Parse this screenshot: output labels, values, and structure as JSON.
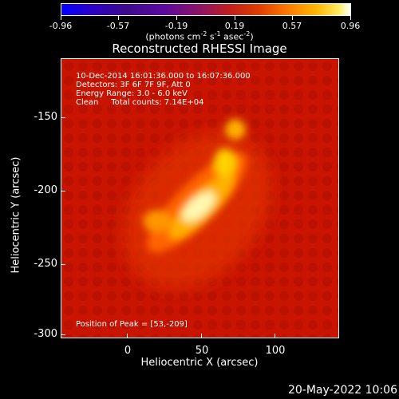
{
  "colorbar": {
    "tick_labels": [
      "-0.96",
      "-0.57",
      "-0.19",
      "0.19",
      "0.57",
      "0.96"
    ],
    "units_main": "(photons cm",
    "units_exp1": "-2",
    "units_mid": " s",
    "units_exp2": "-1",
    "units_mid2": " asec",
    "units_exp3": "-2",
    "units_end": ")"
  },
  "title": "Reconstructed RHESSI Image",
  "info": {
    "line1": "10-Dec-2014 16:01:36.000 to 16:07:36.000",
    "line2": "Detectors: 3F 6F 7F 9F, Att 0",
    "line3": "Energy Range: 3.0 - 6.0 keV",
    "line4": "Clean     Total counts: 7.14E+04",
    "peak": "Position of Peak = [53,-209]"
  },
  "axes": {
    "ylabel": "Heliocentric Y (arcsec)",
    "xlabel": "Heliocentric X (arcsec)",
    "y_ticks": [
      "-150",
      "-200",
      "-250",
      "-300"
    ],
    "x_ticks": [
      "0",
      "50",
      "100"
    ],
    "xlim": [
      -40,
      145
    ],
    "ylim": [
      -303,
      -117
    ]
  },
  "timestamp": "20-May-2022 10:06",
  "colors": {
    "background": "#000000",
    "image_base": "#c81400",
    "peak": "#ffffff"
  }
}
